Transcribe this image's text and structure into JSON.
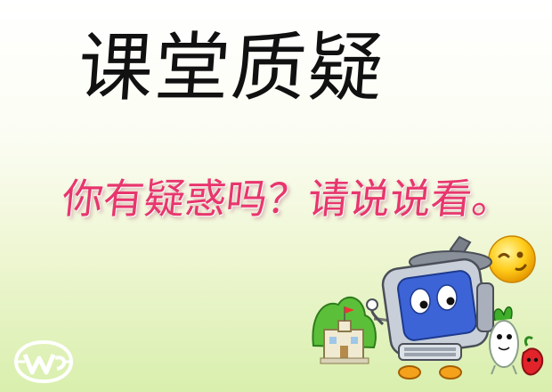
{
  "slide": {
    "title": "课堂质疑",
    "question": "你有疑惑吗？请说说看。"
  },
  "icons": {
    "logo": "school-logo-icon",
    "smiley": "winking-smiley-icon",
    "computer": "cartoon-computer-icon",
    "building": "cartoon-building-icon",
    "radish": "cartoon-radish-icon",
    "pepper": "cartoon-pepper-icon"
  },
  "colors": {
    "question_text": "#e8366d",
    "title_text": "#111111",
    "background_bottom": "#d9efad"
  }
}
